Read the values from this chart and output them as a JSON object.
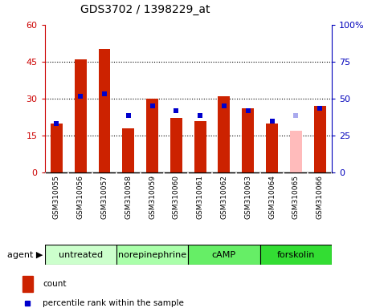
{
  "title": "GDS3702 / 1398229_at",
  "samples": [
    "GSM310055",
    "GSM310056",
    "GSM310057",
    "GSM310058",
    "GSM310059",
    "GSM310060",
    "GSM310061",
    "GSM310062",
    "GSM310063",
    "GSM310064",
    "GSM310065",
    "GSM310066"
  ],
  "count_values": [
    20,
    46,
    50,
    18,
    30,
    22,
    21,
    31,
    26,
    20,
    17,
    27
  ],
  "rank_values": [
    20,
    31,
    32,
    23,
    27,
    25,
    23,
    27,
    25,
    21,
    23,
    26
  ],
  "count_absent": [
    false,
    false,
    false,
    false,
    false,
    false,
    false,
    false,
    false,
    false,
    true,
    false
  ],
  "rank_absent": [
    false,
    false,
    false,
    false,
    false,
    false,
    false,
    false,
    false,
    false,
    true,
    false
  ],
  "agents": [
    {
      "label": "untreated",
      "start": 0,
      "end": 3
    },
    {
      "label": "norepinephrine",
      "start": 3,
      "end": 6
    },
    {
      "label": "cAMP",
      "start": 6,
      "end": 9
    },
    {
      "label": "forskolin",
      "start": 9,
      "end": 12
    }
  ],
  "agent_colors": [
    "#ccffcc",
    "#aaffaa",
    "#66ee66",
    "#33dd33"
  ],
  "ylim_left": [
    0,
    60
  ],
  "ylim_right": [
    0,
    100
  ],
  "yticks_left": [
    0,
    15,
    30,
    45,
    60
  ],
  "yticks_right": [
    0,
    25,
    50,
    75,
    100
  ],
  "ytick_labels_right": [
    "0",
    "25",
    "50",
    "75",
    "100%"
  ],
  "left_tick_color": "#cc0000",
  "right_tick_color": "#0000bb",
  "bar_color_normal": "#cc2200",
  "bar_color_absent": "#ffbbbb",
  "rank_color_normal": "#0000cc",
  "rank_color_absent": "#aaaaee",
  "bar_width": 0.5,
  "rank_marker_size": 4,
  "sample_bg": "#dddddd",
  "plot_bg": "#ffffff",
  "title_fontsize": 10,
  "legend_fontsize": 7.5,
  "sample_fontsize": 6.5,
  "agent_fontsize": 8
}
